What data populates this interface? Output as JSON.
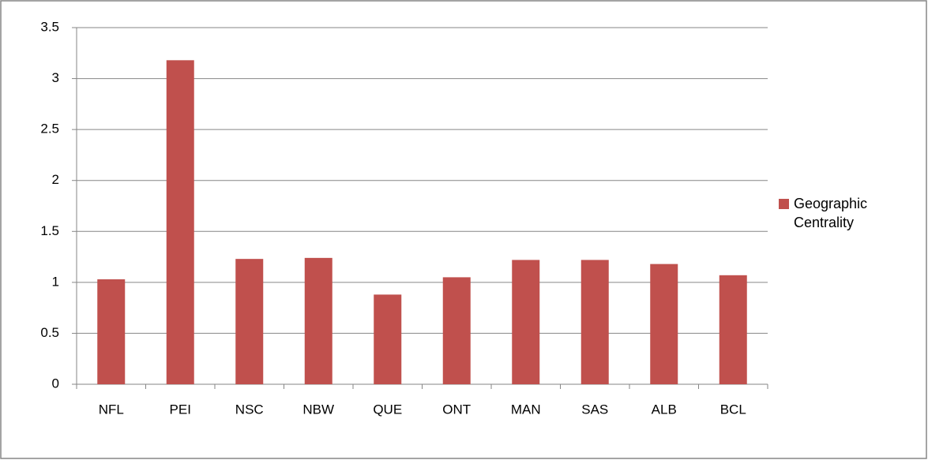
{
  "chart_data": {
    "type": "bar",
    "categories": [
      "NFL",
      "PEI",
      "NSC",
      "NBW",
      "QUE",
      "ONT",
      "MAN",
      "SAS",
      "ALB",
      "BCL"
    ],
    "series": [
      {
        "name": "Geographic Centrality",
        "color": "#c0504d",
        "values": [
          1.03,
          3.18,
          1.23,
          1.24,
          0.88,
          1.05,
          1.22,
          1.22,
          1.18,
          1.07
        ]
      }
    ],
    "ylim": [
      0,
      3.5
    ],
    "yticks": [
      0,
      0.5,
      1,
      1.5,
      2,
      2.5,
      3,
      3.5
    ],
    "grid": true,
    "legend": "right"
  }
}
